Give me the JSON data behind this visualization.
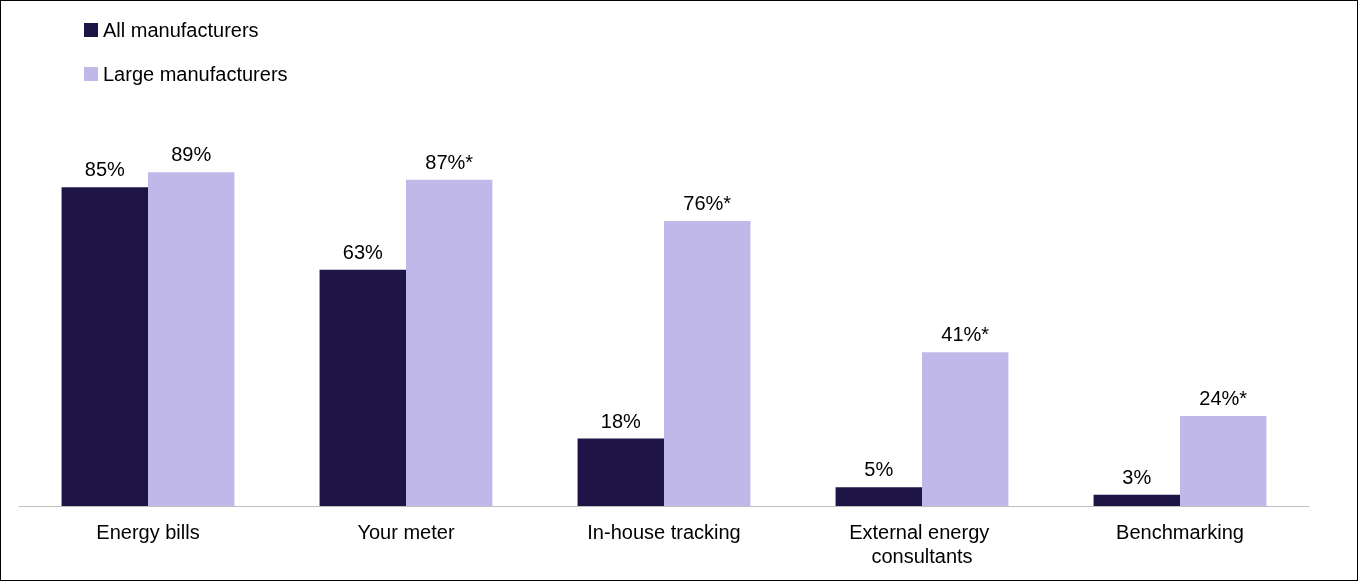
{
  "chart_data": {
    "type": "bar",
    "categories": [
      "Energy bills",
      "Your meter",
      "In-house tracking",
      "External energy consultants",
      "Benchmarking"
    ],
    "series": [
      {
        "name": "All manufacturers",
        "color": "#1e1446",
        "values": [
          85,
          63,
          18,
          5,
          3
        ],
        "value_labels": [
          "85%",
          "63%",
          "18%",
          "5%",
          "3%"
        ]
      },
      {
        "name": "Large manufacturers",
        "color": "#c0b8e8",
        "values": [
          89,
          87,
          76,
          41,
          24
        ],
        "value_labels": [
          "89%",
          "87%*",
          "76%*",
          "41%*",
          "24%*"
        ]
      }
    ],
    "legend": "top left"
  }
}
